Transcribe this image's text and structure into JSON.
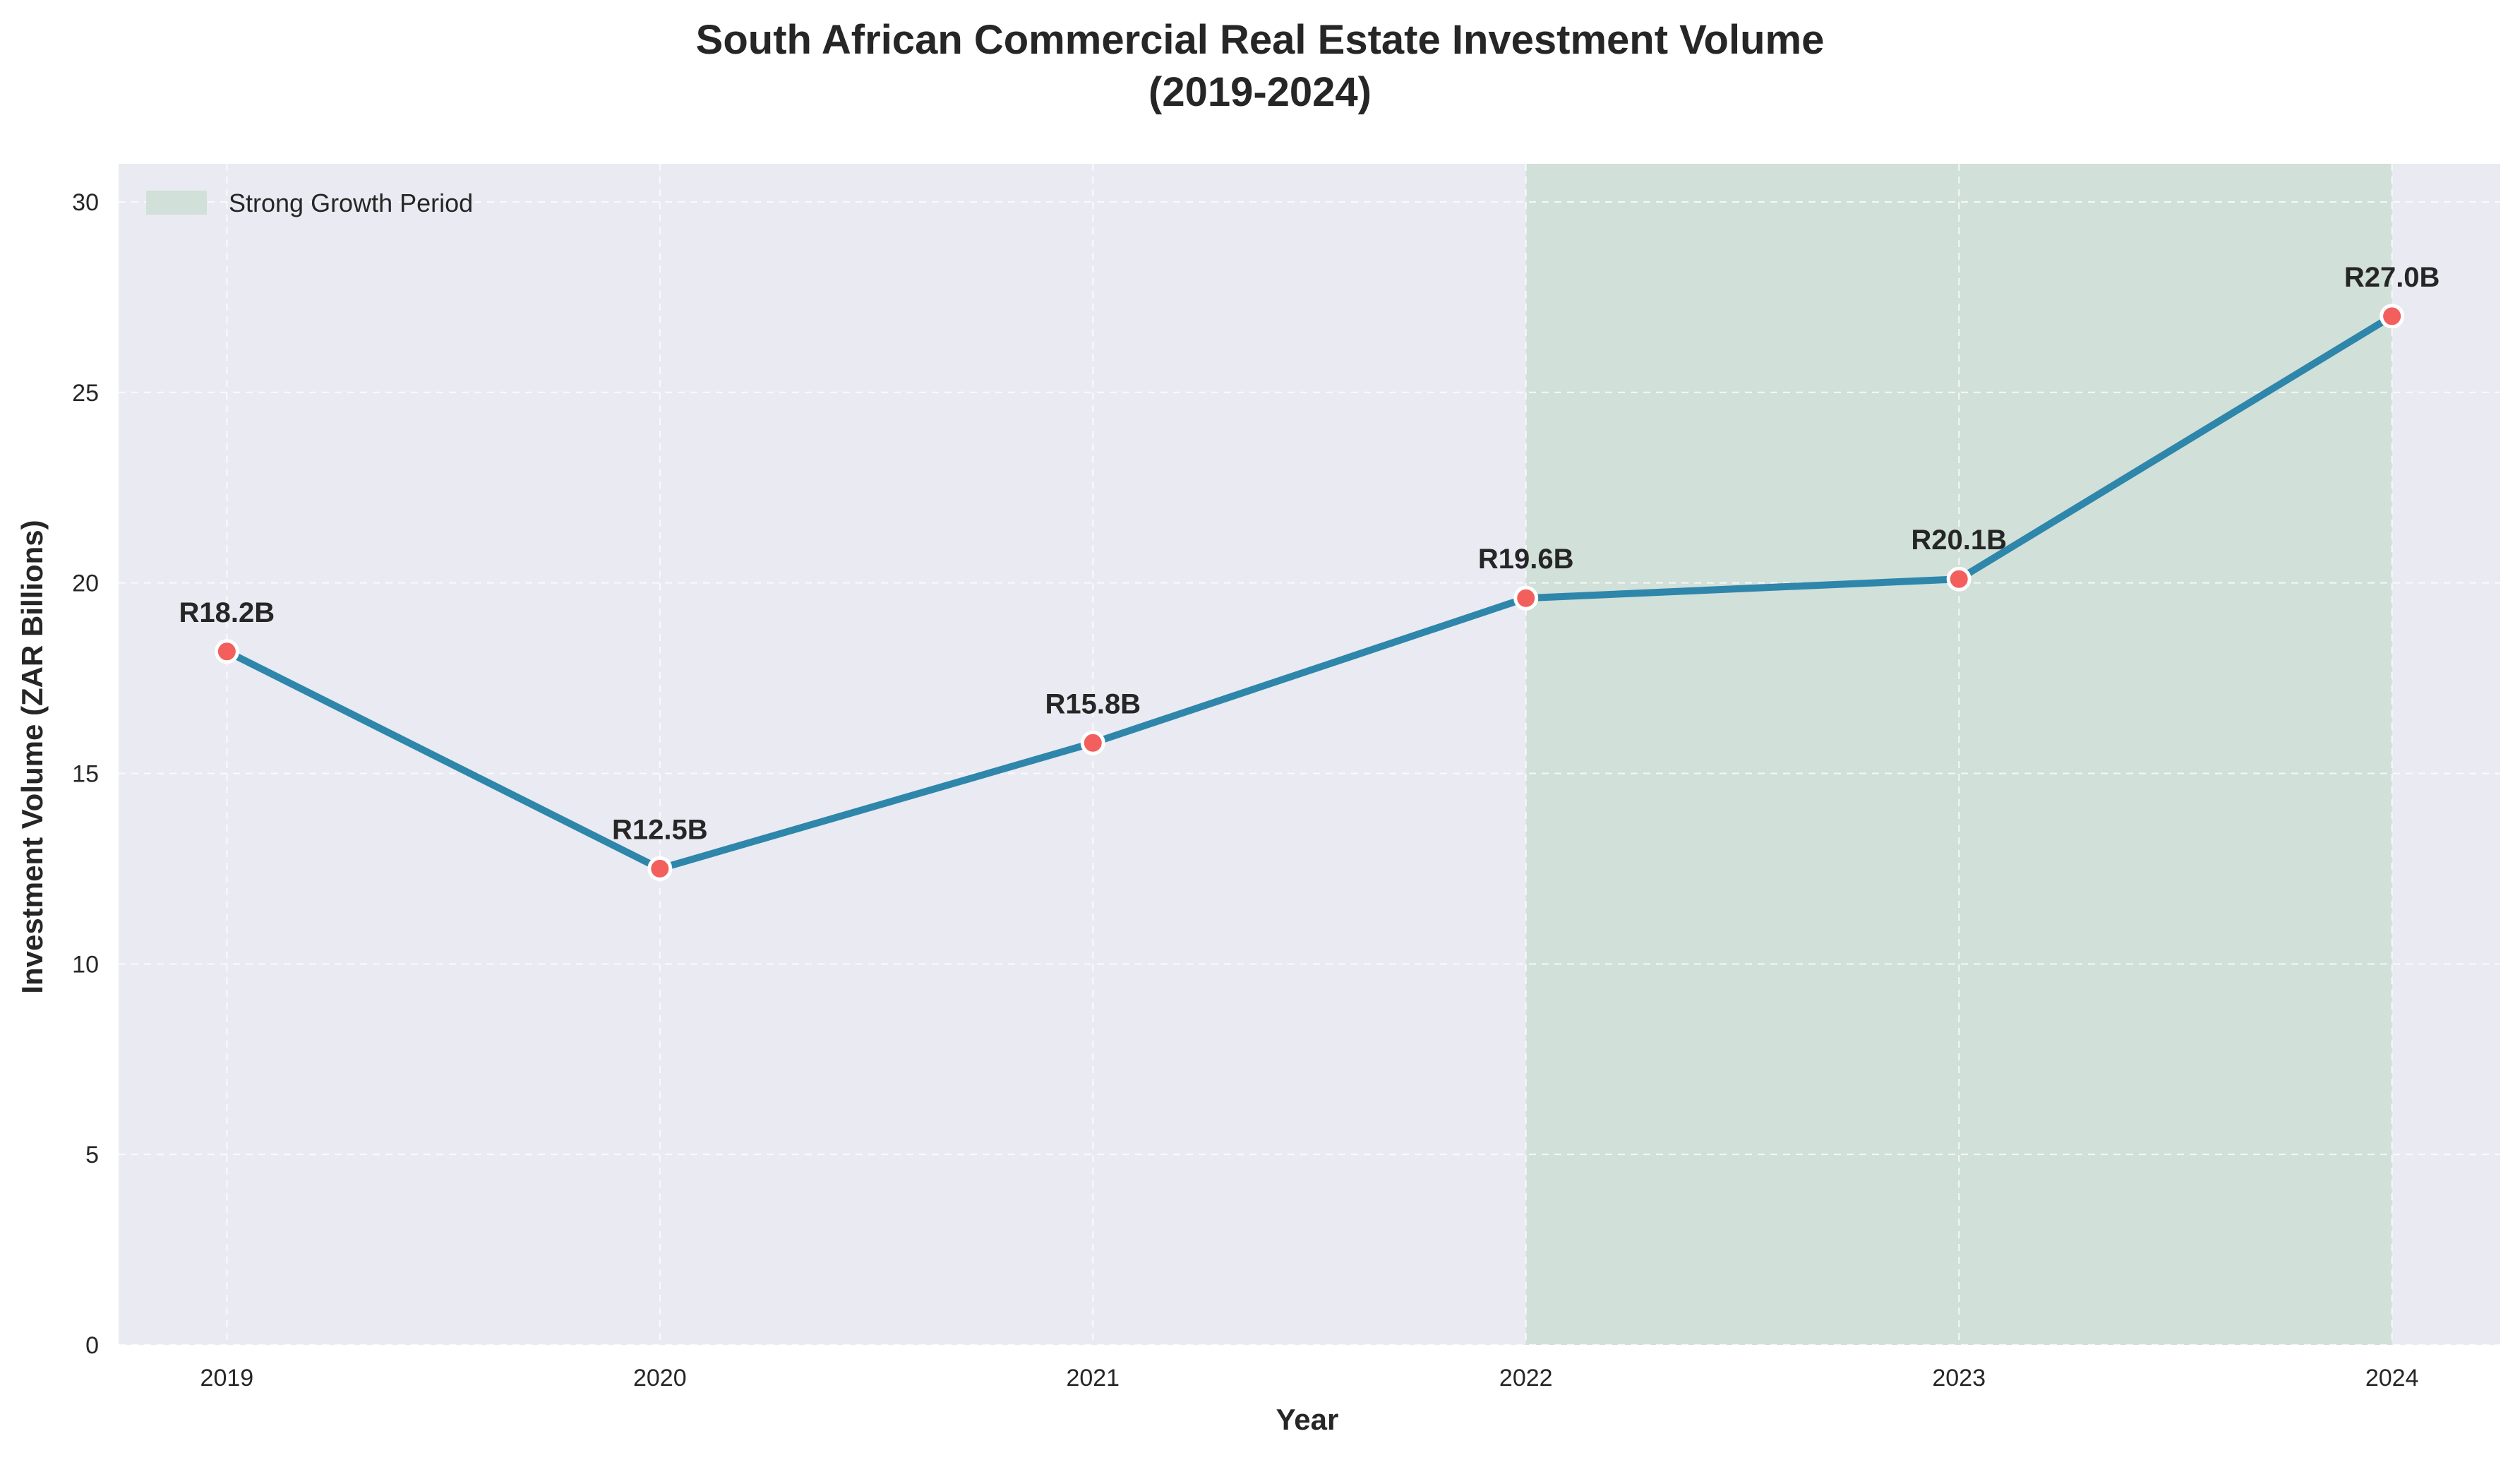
{
  "chart_data": {
    "type": "line",
    "title": "South African Commercial Real Estate Investment Volume",
    "subtitle": "(2019-2024)",
    "xlabel": "Year",
    "ylabel": "Investment Volume (ZAR Billions)",
    "x": [
      2019,
      2020,
      2021,
      2022,
      2023,
      2024
    ],
    "x_tick_labels": [
      "2019",
      "2020",
      "2021",
      "2022",
      "2023",
      "2024"
    ],
    "values": [
      18.2,
      12.5,
      15.8,
      19.6,
      20.1,
      27.0
    ],
    "data_labels": [
      "R18.2B",
      "R12.5B",
      "R15.8B",
      "R19.6B",
      "R20.1B",
      "R27.0B"
    ],
    "y_ticks": [
      0,
      5,
      10,
      15,
      20,
      25,
      30
    ],
    "y_tick_labels": [
      "0",
      "5",
      "10",
      "15",
      "20",
      "25",
      "30"
    ],
    "ylim": [
      0,
      31
    ],
    "xlim": [
      2018.75,
      2024.25
    ],
    "grid": true,
    "highlight": {
      "label": "Strong Growth Period",
      "x_start": 2022,
      "x_end": 2024
    },
    "legend_position": "top-left",
    "colors": {
      "plot_background": "#eaeaf2",
      "line": "#2e86ab",
      "marker": "#f25f5c",
      "marker_edge": "#ffffff",
      "highlight": "#d1e0d8",
      "grid": "#ffffff"
    }
  }
}
